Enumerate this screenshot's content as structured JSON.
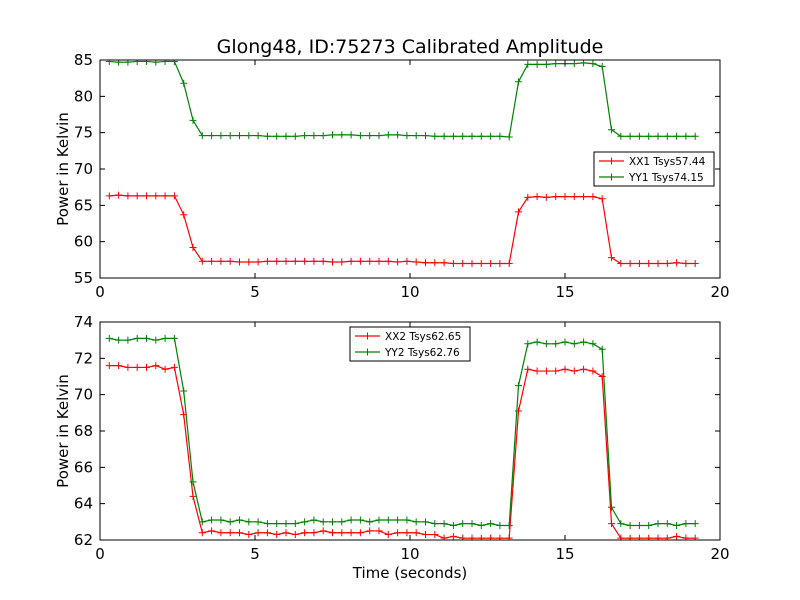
{
  "figure": {
    "title": "Glong48, ID:75273 Calibrated Amplitude"
  },
  "chart_data": [
    {
      "type": "line",
      "title": "Glong48, ID:75273 Calibrated Amplitude",
      "xlabel": "",
      "ylabel": "Power in Kelvin",
      "xlim": [
        0,
        20
      ],
      "ylim": [
        55,
        85
      ],
      "xticks": [
        0,
        5,
        10,
        15,
        20
      ],
      "yticks": [
        55,
        60,
        65,
        70,
        75,
        80,
        85
      ],
      "legend_position": "right",
      "grid": false,
      "series": [
        {
          "name": "XX1 Tsys57.44",
          "color": "#ff0000",
          "x": [
            0.3,
            0.6,
            0.9,
            1.2,
            1.5,
            1.8,
            2.1,
            2.4,
            2.7,
            3.0,
            3.3,
            3.6,
            3.9,
            4.2,
            4.5,
            4.8,
            5.1,
            5.4,
            5.7,
            6.0,
            6.3,
            6.6,
            6.9,
            7.2,
            7.5,
            7.8,
            8.1,
            8.4,
            8.7,
            9.0,
            9.3,
            9.6,
            9.9,
            10.2,
            10.5,
            10.8,
            11.1,
            11.4,
            11.7,
            12.0,
            12.3,
            12.6,
            12.9,
            13.2,
            13.5,
            13.8,
            14.1,
            14.4,
            14.7,
            15.0,
            15.3,
            15.6,
            15.9,
            16.2,
            16.5,
            16.8,
            17.1,
            17.4,
            17.7,
            18.0,
            18.3,
            18.6,
            18.9,
            19.2
          ],
          "values": [
            66.3,
            66.4,
            66.3,
            66.3,
            66.3,
            66.3,
            66.3,
            66.3,
            63.7,
            59.2,
            57.3,
            57.3,
            57.3,
            57.3,
            57.2,
            57.2,
            57.2,
            57.3,
            57.3,
            57.3,
            57.3,
            57.3,
            57.3,
            57.3,
            57.2,
            57.2,
            57.3,
            57.3,
            57.3,
            57.3,
            57.3,
            57.2,
            57.3,
            57.2,
            57.1,
            57.1,
            57.1,
            57.0,
            57.0,
            57.0,
            57.0,
            57.0,
            57.0,
            57.0,
            64.1,
            66.1,
            66.2,
            66.1,
            66.2,
            66.2,
            66.2,
            66.2,
            66.2,
            65.9,
            57.8,
            57.0,
            57.0,
            57.0,
            57.0,
            57.0,
            57.0,
            57.1,
            57.0,
            57.0
          ]
        },
        {
          "name": "YY1 Tsys74.15",
          "color": "#008000",
          "x": [
            0.3,
            0.6,
            0.9,
            1.2,
            1.5,
            1.8,
            2.1,
            2.4,
            2.7,
            3.0,
            3.3,
            3.6,
            3.9,
            4.2,
            4.5,
            4.8,
            5.1,
            5.4,
            5.7,
            6.0,
            6.3,
            6.6,
            6.9,
            7.2,
            7.5,
            7.8,
            8.1,
            8.4,
            8.7,
            9.0,
            9.3,
            9.6,
            9.9,
            10.2,
            10.5,
            10.8,
            11.1,
            11.4,
            11.7,
            12.0,
            12.3,
            12.6,
            12.9,
            13.2,
            13.5,
            13.8,
            14.1,
            14.4,
            14.7,
            15.0,
            15.3,
            15.6,
            15.9,
            16.2,
            16.5,
            16.8,
            17.1,
            17.4,
            17.7,
            18.0,
            18.3,
            18.6,
            18.9,
            19.2
          ],
          "values": [
            84.8,
            84.7,
            84.7,
            84.8,
            84.8,
            84.7,
            84.8,
            84.8,
            81.8,
            76.7,
            74.6,
            74.6,
            74.6,
            74.6,
            74.6,
            74.6,
            74.6,
            74.5,
            74.5,
            74.5,
            74.5,
            74.6,
            74.6,
            74.6,
            74.7,
            74.7,
            74.7,
            74.6,
            74.6,
            74.6,
            74.7,
            74.7,
            74.6,
            74.6,
            74.6,
            74.5,
            74.5,
            74.5,
            74.5,
            74.5,
            74.5,
            74.5,
            74.5,
            74.4,
            82.0,
            84.4,
            84.4,
            84.4,
            84.5,
            84.5,
            84.5,
            84.6,
            84.5,
            84.1,
            75.4,
            74.5,
            74.5,
            74.5,
            74.5,
            74.5,
            74.5,
            74.5,
            74.5,
            74.5
          ]
        }
      ]
    },
    {
      "type": "line",
      "title": "",
      "xlabel": "Time (seconds)",
      "ylabel": "Power in Kelvin",
      "xlim": [
        0,
        20
      ],
      "ylim": [
        62,
        74
      ],
      "xticks": [
        0,
        5,
        10,
        15,
        20
      ],
      "yticks": [
        62,
        64,
        66,
        68,
        70,
        72,
        74
      ],
      "legend_position": "upper center",
      "grid": false,
      "series": [
        {
          "name": "XX2 Tsys62.65",
          "color": "#ff0000",
          "x": [
            0.3,
            0.6,
            0.9,
            1.2,
            1.5,
            1.8,
            2.1,
            2.4,
            2.7,
            3.0,
            3.3,
            3.6,
            3.9,
            4.2,
            4.5,
            4.8,
            5.1,
            5.4,
            5.7,
            6.0,
            6.3,
            6.6,
            6.9,
            7.2,
            7.5,
            7.8,
            8.1,
            8.4,
            8.7,
            9.0,
            9.3,
            9.6,
            9.9,
            10.2,
            10.5,
            10.8,
            11.1,
            11.4,
            11.7,
            12.0,
            12.3,
            12.6,
            12.9,
            13.2,
            13.5,
            13.8,
            14.1,
            14.4,
            14.7,
            15.0,
            15.3,
            15.6,
            15.9,
            16.2,
            16.5,
            16.8,
            17.1,
            17.4,
            17.7,
            18.0,
            18.3,
            18.6,
            18.9,
            19.2
          ],
          "values": [
            71.6,
            71.6,
            71.5,
            71.5,
            71.5,
            71.6,
            71.4,
            71.5,
            68.9,
            64.4,
            62.4,
            62.5,
            62.4,
            62.4,
            62.4,
            62.3,
            62.4,
            62.4,
            62.3,
            62.4,
            62.3,
            62.4,
            62.4,
            62.5,
            62.4,
            62.4,
            62.4,
            62.4,
            62.5,
            62.5,
            62.3,
            62.4,
            62.4,
            62.4,
            62.3,
            62.3,
            62.1,
            62.2,
            62.1,
            62.1,
            62.1,
            62.1,
            62.1,
            62.1,
            69.1,
            71.4,
            71.3,
            71.3,
            71.3,
            71.4,
            71.3,
            71.4,
            71.3,
            71.0,
            62.9,
            62.1,
            62.1,
            62.1,
            62.1,
            62.1,
            62.1,
            62.2,
            62.1,
            62.1
          ]
        },
        {
          "name": "YY2 Tsys62.76",
          "color": "#008000",
          "x": [
            0.3,
            0.6,
            0.9,
            1.2,
            1.5,
            1.8,
            2.1,
            2.4,
            2.7,
            3.0,
            3.3,
            3.6,
            3.9,
            4.2,
            4.5,
            4.8,
            5.1,
            5.4,
            5.7,
            6.0,
            6.3,
            6.6,
            6.9,
            7.2,
            7.5,
            7.8,
            8.1,
            8.4,
            8.7,
            9.0,
            9.3,
            9.6,
            9.9,
            10.2,
            10.5,
            10.8,
            11.1,
            11.4,
            11.7,
            12.0,
            12.3,
            12.6,
            12.9,
            13.2,
            13.5,
            13.8,
            14.1,
            14.4,
            14.7,
            15.0,
            15.3,
            15.6,
            15.9,
            16.2,
            16.5,
            16.8,
            17.1,
            17.4,
            17.7,
            18.0,
            18.3,
            18.6,
            18.9,
            19.2
          ],
          "values": [
            73.1,
            73.0,
            73.0,
            73.1,
            73.1,
            73.0,
            73.1,
            73.1,
            70.2,
            65.2,
            63.0,
            63.1,
            63.1,
            63.0,
            63.1,
            63.0,
            63.0,
            62.9,
            62.9,
            62.9,
            62.9,
            63.0,
            63.1,
            63.0,
            63.0,
            63.0,
            63.1,
            63.1,
            63.0,
            63.1,
            63.1,
            63.1,
            63.1,
            63.0,
            63.0,
            62.9,
            62.9,
            62.8,
            62.9,
            62.9,
            62.8,
            62.9,
            62.8,
            62.8,
            70.5,
            72.8,
            72.9,
            72.8,
            72.8,
            72.9,
            72.8,
            72.9,
            72.8,
            72.5,
            63.8,
            62.9,
            62.8,
            62.8,
            62.8,
            62.9,
            62.9,
            62.8,
            62.9,
            62.9
          ]
        }
      ]
    }
  ]
}
